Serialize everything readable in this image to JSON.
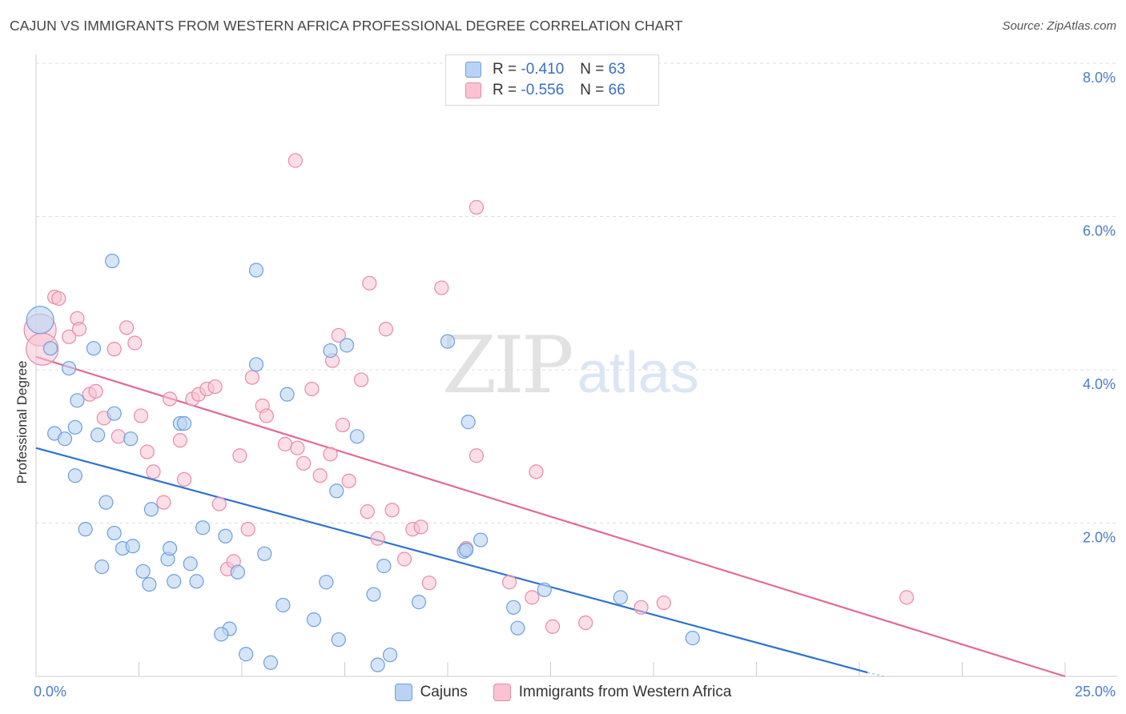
{
  "title": "CAJUN VS IMMIGRANTS FROM WESTERN AFRICA PROFESSIONAL DEGREE CORRELATION CHART",
  "source": "Source: ZipAtlas.com",
  "watermark": {
    "zip": "ZIP",
    "atlas": "atlas"
  },
  "legend": {
    "rows": [
      {
        "r_label": "R =",
        "r_value": "-0.410",
        "n_label": "N =",
        "n_value": "63"
      },
      {
        "r_label": "R =",
        "r_value": "-0.556",
        "n_label": "N =",
        "n_value": "66"
      }
    ]
  },
  "bottom_legend": [
    "Cajuns",
    "Immigrants from Western Africa"
  ],
  "colors": {
    "blue_fill": "#b8d3f4",
    "blue_stroke": "#6f9fdc",
    "blue_line": "#2f72cc",
    "pink_fill": "#f9c3d3",
    "pink_stroke": "#e98aa9",
    "pink_line": "#e06b96",
    "grid": "#dddddd",
    "tick_label": "#4a7cc9"
  },
  "chart_data": {
    "type": "scatter",
    "title": "CAJUN VS IMMIGRANTS FROM WESTERN AFRICA PROFESSIONAL DEGREE CORRELATION CHART",
    "xlabel": "",
    "ylabel": "Professional Degree",
    "xlim": [
      0,
      25
    ],
    "ylim": [
      0,
      8
    ],
    "x_tick_labels": [
      "0.0%",
      "25.0%"
    ],
    "y_ticks": [
      2,
      4,
      6,
      8
    ],
    "y_tick_labels": [
      "2.0%",
      "4.0%",
      "6.0%",
      "8.0%"
    ],
    "grid": true,
    "legend_position": "top-center",
    "series": [
      {
        "name": "Cajuns",
        "R": -0.41,
        "N": 63,
        "trend": {
          "x": [
            0,
            20.2
          ],
          "y": [
            2.98,
            0.05
          ]
        },
        "points": [
          [
            0.1,
            4.65
          ],
          [
            0.35,
            4.28
          ],
          [
            0.8,
            4.02
          ],
          [
            0.95,
            3.25
          ],
          [
            0.45,
            3.17
          ],
          [
            1.0,
            3.6
          ],
          [
            1.5,
            3.15
          ],
          [
            0.7,
            3.1
          ],
          [
            1.9,
            3.43
          ],
          [
            2.3,
            3.1
          ],
          [
            3.5,
            3.3
          ],
          [
            3.6,
            3.3
          ],
          [
            1.85,
            5.42
          ],
          [
            1.4,
            4.28
          ],
          [
            0.95,
            2.62
          ],
          [
            1.7,
            2.27
          ],
          [
            2.8,
            2.18
          ],
          [
            1.2,
            1.92
          ],
          [
            1.9,
            1.87
          ],
          [
            2.1,
            1.67
          ],
          [
            2.35,
            1.7
          ],
          [
            3.2,
            1.53
          ],
          [
            3.25,
            1.67
          ],
          [
            1.6,
            1.43
          ],
          [
            2.6,
            1.37
          ],
          [
            2.75,
            1.2
          ],
          [
            3.35,
            1.24
          ],
          [
            3.75,
            1.47
          ],
          [
            3.9,
            1.24
          ],
          [
            4.05,
            1.94
          ],
          [
            4.6,
            1.83
          ],
          [
            4.9,
            1.36
          ],
          [
            5.55,
            1.6
          ],
          [
            5.35,
            5.3
          ],
          [
            5.35,
            4.07
          ],
          [
            6.1,
            3.68
          ],
          [
            7.15,
            4.25
          ],
          [
            7.3,
            2.42
          ],
          [
            7.55,
            4.32
          ],
          [
            7.8,
            3.13
          ],
          [
            6.0,
            0.93
          ],
          [
            6.75,
            0.74
          ],
          [
            7.05,
            1.23
          ],
          [
            7.35,
            0.48
          ],
          [
            8.2,
            1.07
          ],
          [
            8.45,
            1.44
          ],
          [
            8.6,
            0.28
          ],
          [
            8.3,
            0.15
          ],
          [
            9.3,
            0.97
          ],
          [
            4.7,
            0.62
          ],
          [
            4.5,
            0.55
          ],
          [
            5.1,
            0.29
          ],
          [
            5.7,
            0.18
          ],
          [
            10.0,
            4.37
          ],
          [
            10.5,
            3.32
          ],
          [
            10.4,
            1.63
          ],
          [
            10.8,
            1.78
          ],
          [
            11.6,
            0.9
          ],
          [
            11.7,
            0.63
          ],
          [
            12.35,
            1.13
          ],
          [
            14.2,
            1.03
          ],
          [
            15.95,
            0.5
          ],
          [
            10.45,
            1.65
          ]
        ]
      },
      {
        "name": "Immigrants from Western Africa",
        "R": -0.556,
        "N": 66,
        "trend": {
          "x": [
            0,
            25
          ],
          "y": [
            4.17,
            0
          ]
        },
        "points": [
          [
            0.1,
            4.52
          ],
          [
            0.15,
            4.27
          ],
          [
            0.45,
            4.95
          ],
          [
            0.55,
            4.93
          ],
          [
            1.0,
            4.67
          ],
          [
            0.8,
            4.43
          ],
          [
            1.05,
            4.53
          ],
          [
            1.3,
            3.68
          ],
          [
            1.45,
            3.72
          ],
          [
            1.65,
            3.37
          ],
          [
            1.9,
            4.27
          ],
          [
            2.0,
            3.13
          ],
          [
            2.2,
            4.55
          ],
          [
            2.4,
            4.35
          ],
          [
            2.55,
            3.4
          ],
          [
            2.7,
            2.93
          ],
          [
            2.85,
            2.67
          ],
          [
            3.1,
            2.27
          ],
          [
            3.25,
            3.62
          ],
          [
            3.5,
            3.08
          ],
          [
            3.6,
            2.57
          ],
          [
            3.8,
            3.62
          ],
          [
            3.95,
            3.68
          ],
          [
            4.15,
            3.75
          ],
          [
            4.35,
            3.78
          ],
          [
            4.45,
            2.25
          ],
          [
            4.65,
            1.4
          ],
          [
            4.8,
            1.5
          ],
          [
            4.95,
            2.88
          ],
          [
            5.15,
            1.92
          ],
          [
            5.5,
            3.53
          ],
          [
            5.6,
            3.4
          ],
          [
            5.25,
            3.9
          ],
          [
            6.05,
            3.03
          ],
          [
            6.3,
            6.73
          ],
          [
            6.35,
            2.98
          ],
          [
            6.5,
            2.78
          ],
          [
            6.7,
            3.75
          ],
          [
            6.9,
            2.62
          ],
          [
            7.15,
            2.9
          ],
          [
            7.2,
            4.12
          ],
          [
            7.35,
            4.45
          ],
          [
            7.45,
            3.28
          ],
          [
            7.6,
            2.55
          ],
          [
            7.9,
            3.87
          ],
          [
            8.05,
            2.15
          ],
          [
            8.1,
            5.13
          ],
          [
            8.3,
            1.8
          ],
          [
            8.5,
            4.53
          ],
          [
            8.65,
            2.17
          ],
          [
            8.95,
            1.53
          ],
          [
            9.15,
            1.92
          ],
          [
            9.35,
            1.95
          ],
          [
            9.55,
            1.22
          ],
          [
            9.85,
            5.07
          ],
          [
            10.45,
            1.67
          ],
          [
            10.7,
            6.12
          ],
          [
            10.7,
            2.88
          ],
          [
            11.5,
            1.23
          ],
          [
            12.05,
            1.03
          ],
          [
            12.15,
            2.67
          ],
          [
            12.55,
            0.65
          ],
          [
            13.35,
            0.7
          ],
          [
            14.7,
            0.9
          ],
          [
            15.25,
            0.96
          ],
          [
            21.15,
            1.03
          ]
        ]
      }
    ]
  }
}
